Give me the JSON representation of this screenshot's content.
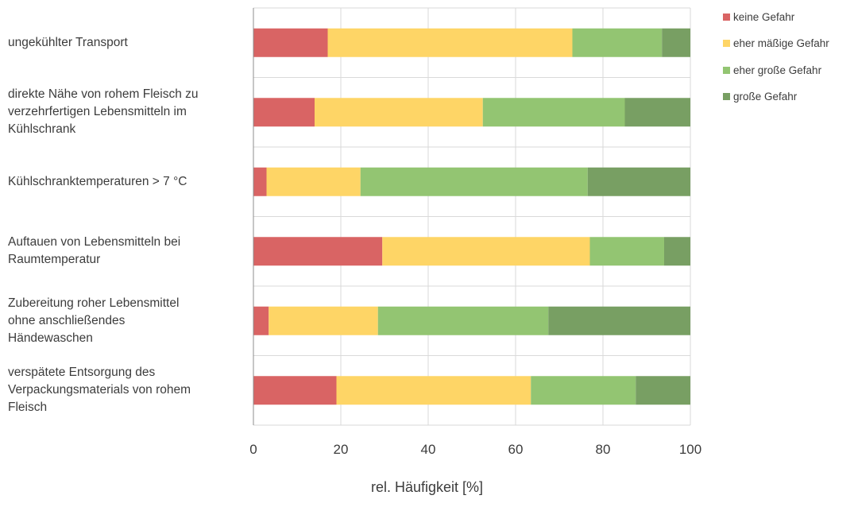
{
  "chart_data": {
    "type": "bar",
    "orientation": "horizontal",
    "stacked": true,
    "categories": [
      "ungekühlter Transport",
      "direkte Nähe von rohem Fleisch zu verzehrfertigen Lebensmitteln im Kühlschrank",
      "Kühlschranktemperaturen > 7 °C",
      "Auftauen von Lebensmitteln bei Raumtemperatur",
      "Zubereitung roher Lebensmittel ohne anschließendes Händewaschen",
      "verspätete Entsorgung  des Verpackungsmaterials von rohem Fleisch"
    ],
    "category_lines": [
      [
        "ungekühlter Transport"
      ],
      [
        "direkte Nähe von rohem Fleisch zu",
        "verzehrfertigen Lebensmitteln im",
        "Kühlschrank"
      ],
      [
        "Kühlschranktemperaturen > 7 °C"
      ],
      [
        "Auftauen von Lebensmitteln bei",
        "Raumtemperatur"
      ],
      [
        "Zubereitung roher Lebensmittel",
        "ohne anschließendes",
        "Händewaschen"
      ],
      [
        "verspätete Entsorgung  des",
        "Verpackungsmaterials von rohem",
        "Fleisch"
      ]
    ],
    "series": [
      {
        "name": "keine Gefahr",
        "color": "#d96464",
        "values": [
          17,
          14,
          3,
          29.5,
          3.5,
          19
        ]
      },
      {
        "name": "eher mäßige Gefahr",
        "color": "#fed566",
        "values": [
          56,
          38.5,
          21.5,
          47.5,
          25,
          44.5
        ]
      },
      {
        "name": "eher große Gefahr",
        "color": "#93c572",
        "values": [
          20.5,
          32.5,
          52,
          17,
          39,
          24
        ]
      },
      {
        "name": "große Gefahr",
        "color": "#789f63",
        "values": [
          6.5,
          15,
          23.5,
          6,
          32.5,
          12.5
        ]
      }
    ],
    "xlabel": "rel. Häufigkeit [%]",
    "xlim": [
      0,
      100
    ],
    "xticks": [
      0,
      20,
      40,
      60,
      80,
      100
    ],
    "grid": true,
    "legend_position": "top-right"
  }
}
